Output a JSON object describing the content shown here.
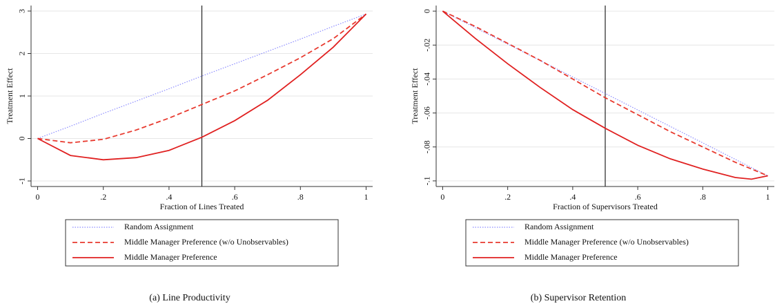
{
  "chart_data": [
    {
      "type": "line",
      "caption": "(a) Line Productivity",
      "x_label": "Fraction of Lines Treated",
      "y_label": "Treatment Effect",
      "x": [
        0,
        0.1,
        0.2,
        0.3,
        0.4,
        0.5,
        0.6,
        0.7,
        0.8,
        0.9,
        1
      ],
      "series": [
        {
          "name": "Random Assignment",
          "color": "#8a8aff",
          "style": "dotted",
          "values": [
            0,
            0.29,
            0.59,
            0.88,
            1.17,
            1.47,
            1.76,
            2.05,
            2.34,
            2.64,
            2.93
          ]
        },
        {
          "name": "Middle Manager Preference (w/o Unobservables)",
          "color": "#e8392e",
          "style": "dashed",
          "values": [
            0,
            -0.1,
            -0.02,
            0.2,
            0.48,
            0.8,
            1.12,
            1.5,
            1.9,
            2.35,
            2.93
          ]
        },
        {
          "name": "Middle Manager Preference",
          "color": "#e02020",
          "style": "solid",
          "values": [
            0,
            -0.4,
            -0.5,
            -0.45,
            -0.28,
            0.03,
            0.42,
            0.9,
            1.5,
            2.15,
            2.93
          ]
        }
      ],
      "vline": 0.5,
      "xlim": [
        -0.02,
        1.02
      ],
      "ylim": [
        -1.13,
        3.13
      ],
      "xticks": [
        0,
        {
          "value": 0.2,
          "label": ".2"
        },
        {
          "value": 0.4,
          "label": ".4"
        },
        {
          "value": 0.6,
          "label": ".6"
        },
        {
          "value": 0.8,
          "label": ".8"
        },
        1
      ],
      "yticks": [
        -1,
        0,
        1,
        2,
        3
      ],
      "grid": true
    },
    {
      "type": "line",
      "caption": "(b) Supervisor Retention",
      "x_label": "Fraction of Supervisors Treated",
      "y_label": "Treatment Effect",
      "x": [
        0,
        0.1,
        0.2,
        0.3,
        0.4,
        0.5,
        0.6,
        0.7,
        0.8,
        0.9,
        0.95,
        1
      ],
      "series": [
        {
          "name": "Random Assignment",
          "color": "#8a8aff",
          "style": "dotted",
          "values": [
            0,
            -0.0097,
            -0.0194,
            -0.0291,
            -0.0388,
            -0.0485,
            -0.0582,
            -0.0679,
            -0.0776,
            -0.0873,
            -0.0922,
            -0.097
          ]
        },
        {
          "name": "Middle Manager Preference (w/o Unobservables)",
          "color": "#e8392e",
          "style": "dashed",
          "values": [
            0,
            -0.009,
            -0.019,
            -0.029,
            -0.04,
            -0.051,
            -0.061,
            -0.071,
            -0.08,
            -0.089,
            -0.093,
            -0.097
          ]
        },
        {
          "name": "Middle Manager Preference",
          "color": "#e02020",
          "style": "solid",
          "values": [
            0,
            -0.016,
            -0.031,
            -0.045,
            -0.058,
            -0.069,
            -0.079,
            -0.087,
            -0.093,
            -0.098,
            -0.099,
            -0.097
          ]
        }
      ],
      "vline": 0.5,
      "xlim": [
        -0.02,
        1.02
      ],
      "ylim": [
        -0.1033,
        0.0033
      ],
      "xticks": [
        0,
        {
          "value": 0.2,
          "label": ".2"
        },
        {
          "value": 0.4,
          "label": ".4"
        },
        {
          "value": 0.6,
          "label": ".6"
        },
        {
          "value": 0.8,
          "label": ".8"
        },
        1
      ],
      "yticks": [
        0,
        {
          "value": -0.02,
          "label": "-.02"
        },
        {
          "value": -0.04,
          "label": "-.04"
        },
        {
          "value": -0.06,
          "label": "-.06"
        },
        {
          "value": -0.08,
          "label": "-.08"
        },
        {
          "value": -0.1,
          "label": "-.1"
        }
      ],
      "grid": true
    }
  ]
}
